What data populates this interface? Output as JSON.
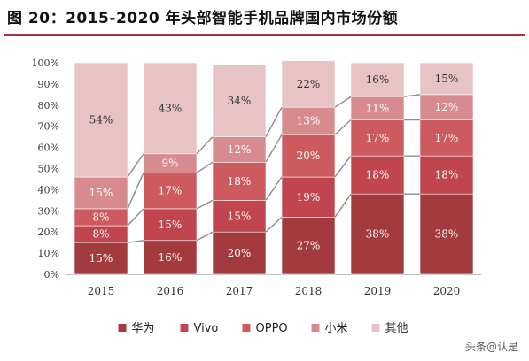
{
  "figure": {
    "title": "图 20：2015-2020 年头部智能手机品牌国内市场份额"
  },
  "watermark": "头条@认是",
  "colors": {
    "title_rule": "#a8323e",
    "series": {
      "华为": "#a33a3e",
      "Vivo": "#c0454f",
      "OPPO": "#cd5a5f",
      "小米": "#d88b8f",
      "其他": "#e8c3c6"
    }
  },
  "chart_data": {
    "type": "bar",
    "stacked": true,
    "title": "",
    "xlabel": "",
    "ylabel": "",
    "categories": [
      "2015",
      "2016",
      "2017",
      "2018",
      "2019",
      "2020"
    ],
    "ylim": [
      0,
      100
    ],
    "yticks": [
      "0%",
      "10%",
      "20%",
      "30%",
      "40%",
      "50%",
      "60%",
      "70%",
      "80%",
      "90%",
      "100%"
    ],
    "legend_position": "bottom",
    "connector_lines": true,
    "series": [
      {
        "name": "华为",
        "values": [
          15,
          16,
          20,
          27,
          38,
          38
        ],
        "labels": [
          "15%",
          "16%",
          "20%",
          "27%",
          "38%",
          "38%"
        ]
      },
      {
        "name": "Vivo",
        "values": [
          8,
          15,
          15,
          19,
          18,
          18
        ],
        "labels": [
          "8%",
          "15%",
          "15%",
          "19%",
          "18%",
          "18%"
        ]
      },
      {
        "name": "OPPO",
        "values": [
          8,
          17,
          18,
          20,
          17,
          17
        ],
        "labels": [
          "8%",
          "17%",
          "18%",
          "20%",
          "17%",
          "17%"
        ]
      },
      {
        "name": "小米",
        "values": [
          15,
          9,
          12,
          13,
          11,
          12
        ],
        "labels": [
          "15%",
          "9%",
          "12%",
          "13%",
          "11%",
          "12%"
        ]
      },
      {
        "name": "其他",
        "values": [
          54,
          43,
          34,
          22,
          16,
          15
        ],
        "labels": [
          "54%",
          "43%",
          "34%",
          "22%",
          "16%",
          "15%"
        ]
      }
    ]
  }
}
